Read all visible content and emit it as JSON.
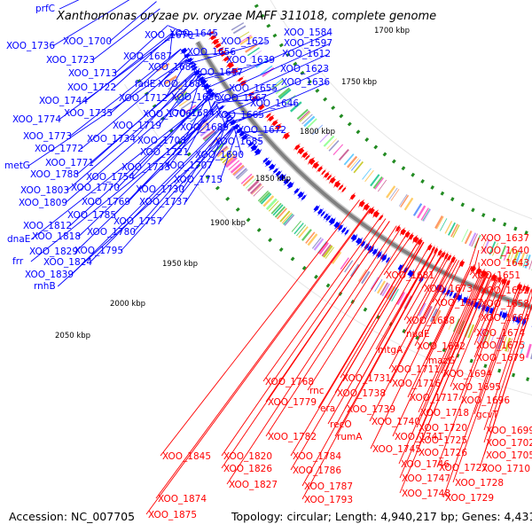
{
  "header": {
    "title": "Xanthomonas oryzae pv. oryzae MAFF 311018, complete genome"
  },
  "footer": {
    "accession": "Accession: NC_007705",
    "summary": "Topology: circular; Length: 4,940,217 bp; Genes: 4,431"
  },
  "colors": {
    "forward": "#0000ff",
    "reverse": "#ff0000",
    "backbone": "#808080",
    "tick": "#228b22"
  },
  "ruler": {
    "unit": "kbp",
    "ticks": [
      {
        "label": "1700 kbp",
        "value": 1700
      },
      {
        "label": "1750 kbp",
        "value": 1750
      },
      {
        "label": "1800 kbp",
        "value": 1800
      },
      {
        "label": "1850 kbp",
        "value": 1850
      },
      {
        "label": "1900 kbp",
        "value": 1900
      },
      {
        "label": "1950 kbp",
        "value": 1950
      },
      {
        "label": "2000 kbp",
        "value": 2000
      },
      {
        "label": "2050 kbp",
        "value": 2050
      }
    ]
  },
  "forward_genes": [
    "prfC",
    "XOO_1584",
    "XOO_1597",
    "XOO_1612",
    "XOO_1623",
    "XOO_1625",
    "XOO_1636",
    "XOO_1639",
    "XOO_1645",
    "XOO_1646",
    "XOO_1655",
    "XOO_1656",
    "XOO_1657",
    "XOO_1665",
    "XOO_1667",
    "XOO_1670",
    "XOO_1672",
    "XOO_1682",
    "XOO_1683",
    "XOO_1684",
    "XOO_1685",
    "XOO_1686",
    "XOO_1687",
    "XOO_1689",
    "XOO_1690",
    "XOO_1700",
    "XOO_1706",
    "XOO_1707",
    "XOO_1708",
    "fadE",
    "XOO_1712",
    "XOO_1713",
    "XOO_1715",
    "XOO_1719",
    "XOO_1721",
    "XOO_1722",
    "XOO_1723",
    "XOO_1730",
    "XOO_1733",
    "XOO_1734",
    "XOO_1735",
    "XOO_1736",
    "XOO_1737",
    "XOO_1744",
    "XOO_1754",
    "XOO_1757",
    "XOO_1769",
    "XOO_1770",
    "XOO_1771",
    "XOO_1772",
    "XOO_1773",
    "XOO_1774",
    "XOO_1780",
    "XOO_1785",
    "metG",
    "XOO_1788",
    "XOO_1795",
    "XOO_1803",
    "XOO_1809",
    "XOO_1812",
    "dnaE",
    "XOO_1818",
    "XOO_1824",
    "XOO_1829",
    "frr",
    "XOO_1839",
    "rnhB"
  ],
  "reverse_genes": [
    "XOO_1637",
    "XOO_1640",
    "XOO_1643",
    "XOO_1651",
    "XOO_1652",
    "XOO_1658",
    "XOO_1664",
    "XOO_1673",
    "XOO_1677",
    "XOO_1681",
    "XOO_1674",
    "XOO_1675",
    "XOO_1679",
    "XOO_1688",
    "nudE",
    "XOO_1692",
    "mtgA",
    "mazG",
    "XOO_1694",
    "XOO_1695",
    "XOO_1696",
    "XOO_1711",
    "XOO_1716",
    "XOO_1717",
    "XOO_1718",
    "XOO_1731",
    "XOO_1738",
    "rnc",
    "XOO_1739",
    "era",
    "XOO_1740",
    "recO",
    "XOO_1741",
    "rumA",
    "XOO_1745",
    "XOO_1746",
    "XOO_1747",
    "XOO_1748",
    "gcvT",
    "XOO_1699",
    "XOO_1702",
    "XOO_1705",
    "XOO_1710",
    "XOO_1720",
    "XOO_1725",
    "XOO_1726",
    "XOO_1727",
    "XOO_1728",
    "XOO_1729",
    "XOO_1768",
    "XOO_1779",
    "XOO_1782",
    "XOO_1784",
    "XOO_1786",
    "XOO_1787",
    "XOO_1793",
    "XOO_1845",
    "XOO_1820",
    "XOO_1826",
    "XOO_1827",
    "XOO_1874",
    "XOO_1875"
  ]
}
